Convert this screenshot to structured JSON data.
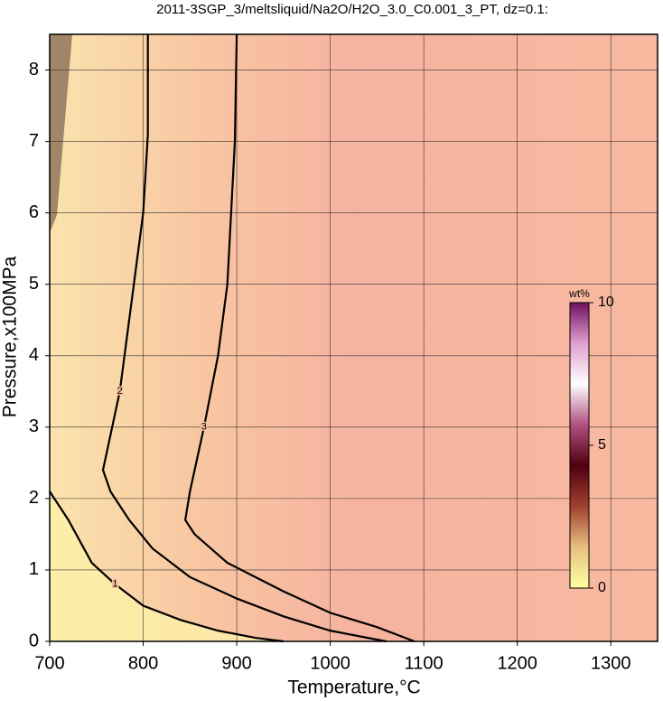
{
  "chart_data": {
    "type": "contour",
    "title": "2011-3SGP_3/meltsliquid/Na2O/H2O_3.0_C0.001_3_PT, dz=0.1:",
    "x_label": "Temperature,°C",
    "y_label": "Pressure,x100MPa",
    "xlim": [
      700,
      1350
    ],
    "ylim": [
      0,
      8.5
    ],
    "xticks": [
      700,
      800,
      900,
      1000,
      1100,
      1200,
      1300
    ],
    "yticks": [
      0,
      1,
      2,
      3,
      4,
      5,
      6,
      7,
      8
    ],
    "grid": true,
    "contours": [
      {
        "level": 1,
        "x": [
          700,
          720,
          745,
          770,
          800,
          840,
          880,
          920,
          950
        ],
        "y": [
          2.1,
          1.7,
          1.1,
          0.8,
          0.5,
          0.3,
          0.15,
          0.05,
          0
        ]
      },
      {
        "level": 2,
        "x": [
          805,
          805,
          800,
          790,
          775,
          757,
          765,
          785,
          810,
          850,
          900,
          950,
          1000,
          1060
        ],
        "y": [
          8.5,
          7.1,
          6,
          5,
          3.5,
          2.4,
          2.1,
          1.7,
          1.3,
          0.9,
          0.6,
          0.35,
          0.15,
          0
        ]
      },
      {
        "level": 3,
        "x": [
          900,
          898,
          890,
          880,
          865,
          850,
          845,
          855,
          890,
          950,
          1000,
          1050,
          1090
        ],
        "y": [
          8.5,
          7,
          5,
          4,
          3,
          2.1,
          1.7,
          1.5,
          1.1,
          0.7,
          0.4,
          0.2,
          0
        ]
      }
    ],
    "colorbar": {
      "label": "wt%",
      "lim": [
        0,
        10
      ],
      "ticks": [
        0,
        5,
        10
      ],
      "colors": [
        "#ffffa0",
        "#e8c080",
        "#a04030",
        "#500010",
        "#b05080",
        "#ffffff",
        "#e0a0d0",
        "#701060"
      ]
    }
  }
}
